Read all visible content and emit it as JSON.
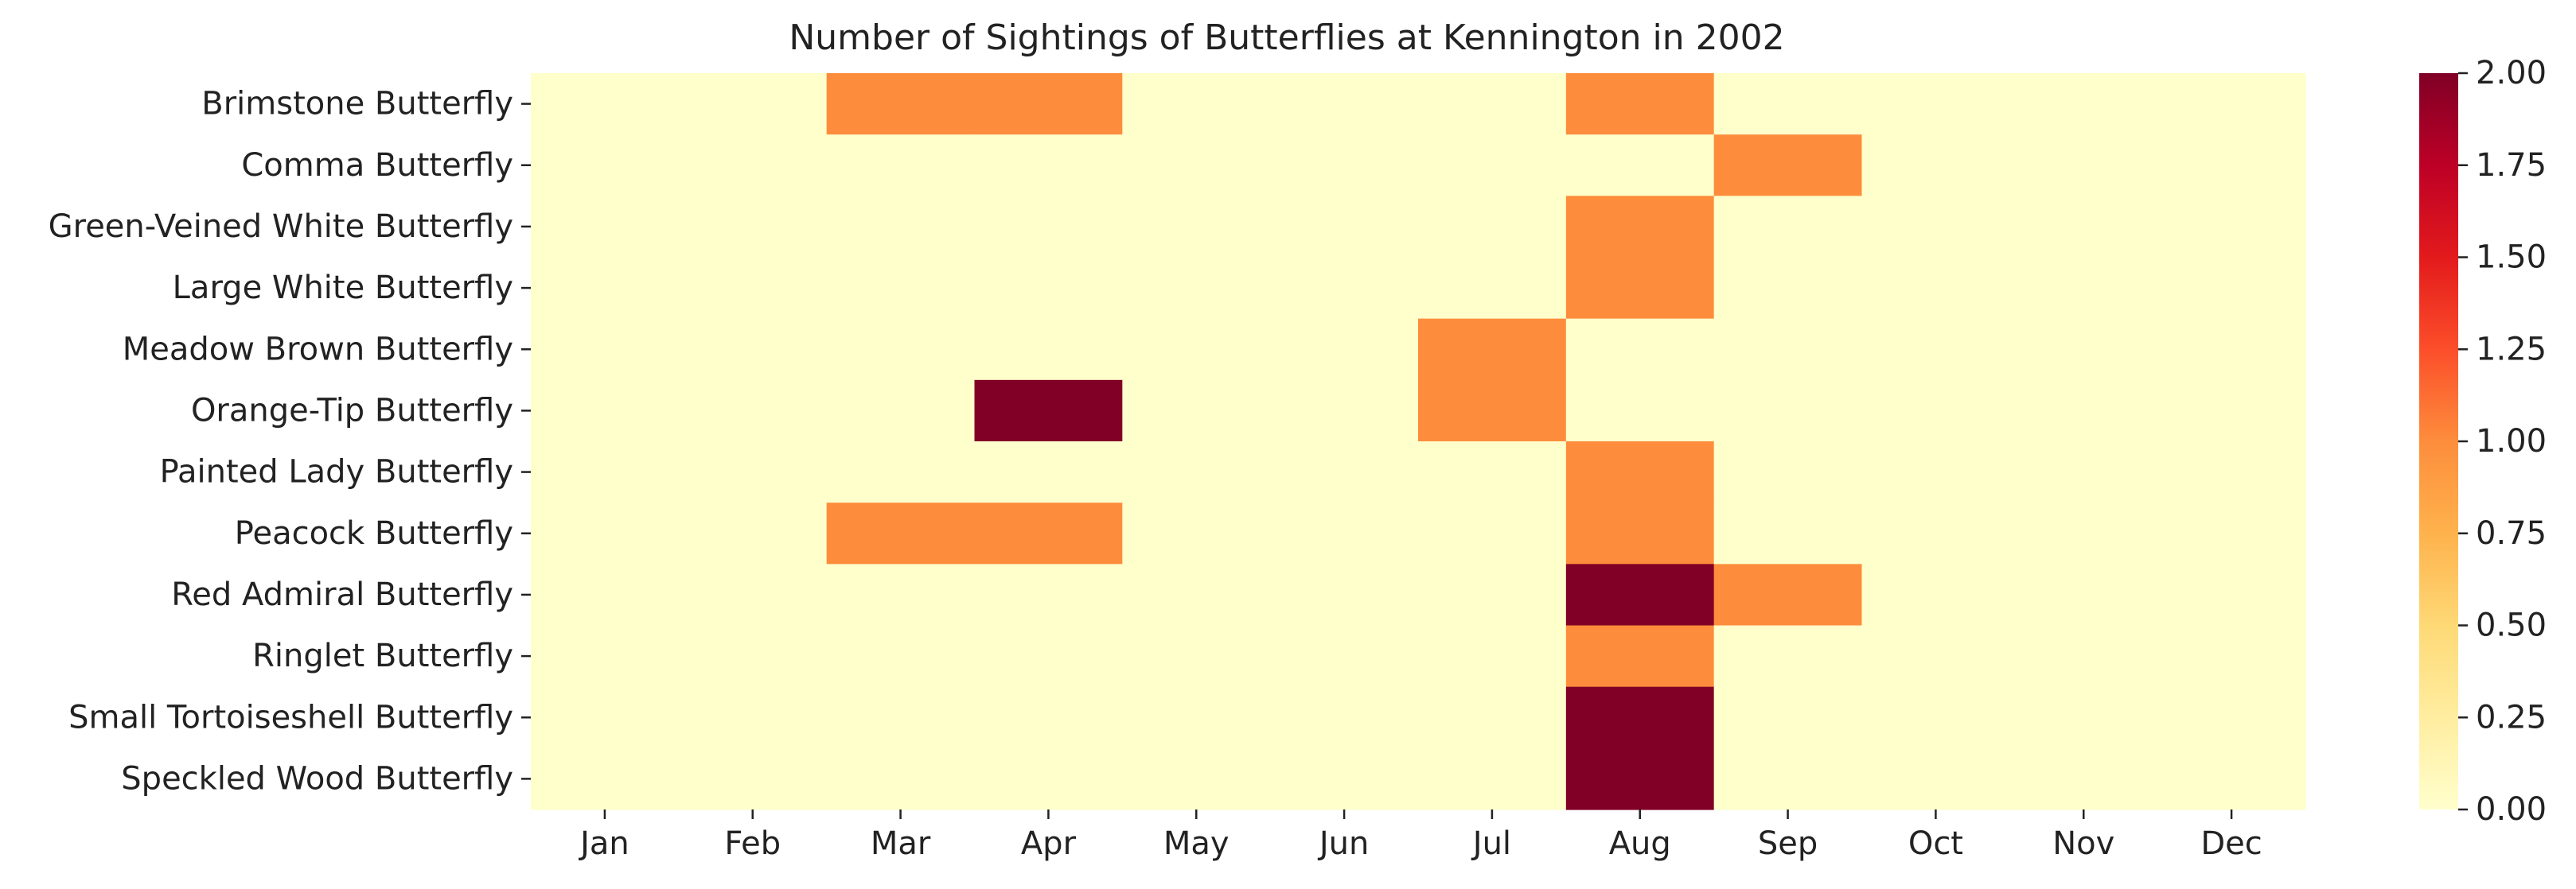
{
  "chart_data": {
    "type": "heatmap",
    "title": "Number of Sightings of Butterflies at Kennington in 2002",
    "xlabel": "",
    "ylabel": "",
    "x_categories": [
      "Jan",
      "Feb",
      "Mar",
      "Apr",
      "May",
      "Jun",
      "Jul",
      "Aug",
      "Sep",
      "Oct",
      "Nov",
      "Dec"
    ],
    "y_categories": [
      "Brimstone Butterfly",
      "Comma Butterfly",
      "Green-Veined White Butterfly",
      "Large White Butterfly",
      "Meadow Brown Butterfly",
      "Orange-Tip Butterfly",
      "Painted Lady Butterfly",
      "Peacock Butterfly",
      "Red Admiral Butterfly",
      "Ringlet Butterfly",
      "Small Tortoiseshell Butterfly",
      "Speckled Wood Butterfly"
    ],
    "values": [
      [
        0,
        0,
        1,
        1,
        0,
        0,
        0,
        1,
        0,
        0,
        0,
        0
      ],
      [
        0,
        0,
        0,
        0,
        0,
        0,
        0,
        0,
        1,
        0,
        0,
        0
      ],
      [
        0,
        0,
        0,
        0,
        0,
        0,
        0,
        1,
        0,
        0,
        0,
        0
      ],
      [
        0,
        0,
        0,
        0,
        0,
        0,
        0,
        1,
        0,
        0,
        0,
        0
      ],
      [
        0,
        0,
        0,
        0,
        0,
        0,
        1,
        0,
        0,
        0,
        0,
        0
      ],
      [
        0,
        0,
        0,
        2,
        0,
        0,
        1,
        0,
        0,
        0,
        0,
        0
      ],
      [
        0,
        0,
        0,
        0,
        0,
        0,
        0,
        1,
        0,
        0,
        0,
        0
      ],
      [
        0,
        0,
        1,
        1,
        0,
        0,
        0,
        1,
        0,
        0,
        0,
        0
      ],
      [
        0,
        0,
        0,
        0,
        0,
        0,
        0,
        2,
        1,
        0,
        0,
        0
      ],
      [
        0,
        0,
        0,
        0,
        0,
        0,
        0,
        1,
        0,
        0,
        0,
        0
      ],
      [
        0,
        0,
        0,
        0,
        0,
        0,
        0,
        2,
        0,
        0,
        0,
        0
      ],
      [
        0,
        0,
        0,
        0,
        0,
        0,
        0,
        2,
        0,
        0,
        0,
        0
      ]
    ],
    "colorbar": {
      "range": [
        0,
        2
      ],
      "tick_values": [
        0,
        0.25,
        0.5,
        0.75,
        1.0,
        1.25,
        1.5,
        1.75,
        2.0
      ],
      "tick_labels": [
        "0.00",
        "0.25",
        "0.50",
        "0.75",
        "1.00",
        "1.25",
        "1.50",
        "1.75",
        "2.00"
      ],
      "colormap": "YlOrRd",
      "color_stops": [
        "#ffffcc",
        "#ffeda0",
        "#fed976",
        "#feb24c",
        "#fd8d3c",
        "#fc4e2a",
        "#e31a1c",
        "#bd0026",
        "#800026"
      ]
    },
    "grid": false
  }
}
